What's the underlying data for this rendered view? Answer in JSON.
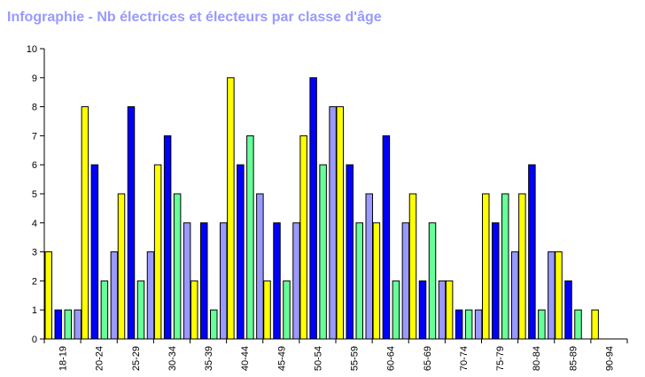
{
  "chart_data": {
    "type": "bar",
    "title": "Infographie - Nb électrices et électeurs par classe d'âge",
    "categories": [
      "18-19",
      "20-24",
      "25-29",
      "30-34",
      "35-39",
      "40-44",
      "45-49",
      "50-54",
      "55-59",
      "60-64",
      "65-69",
      "70-74",
      "75-79",
      "80-84",
      "85-89",
      "90-94"
    ],
    "series": [
      {
        "color": "#ffff00",
        "values": [
          3,
          8,
          5,
          6,
          2,
          9,
          2,
          7,
          8,
          4,
          5,
          2,
          5,
          5,
          3,
          1
        ]
      },
      {
        "color": "#0000ff",
        "values": [
          1,
          6,
          8,
          7,
          4,
          6,
          4,
          9,
          6,
          7,
          2,
          1,
          4,
          6,
          2,
          0
        ]
      },
      {
        "color": "#66ff99",
        "values": [
          1,
          2,
          2,
          5,
          1,
          7,
          2,
          6,
          4,
          2,
          4,
          1,
          5,
          1,
          1,
          0
        ]
      },
      {
        "color": "#9999ff",
        "values": [
          1,
          3,
          3,
          4,
          4,
          5,
          4,
          8,
          5,
          4,
          2,
          1,
          3,
          3,
          0,
          0
        ]
      }
    ],
    "ylim": [
      0,
      10
    ],
    "yticks": [
      0,
      1,
      2,
      3,
      4,
      5,
      6,
      7,
      8,
      9,
      10
    ],
    "xlabel": "",
    "ylabel": "",
    "grid": false,
    "legend": "none"
  }
}
